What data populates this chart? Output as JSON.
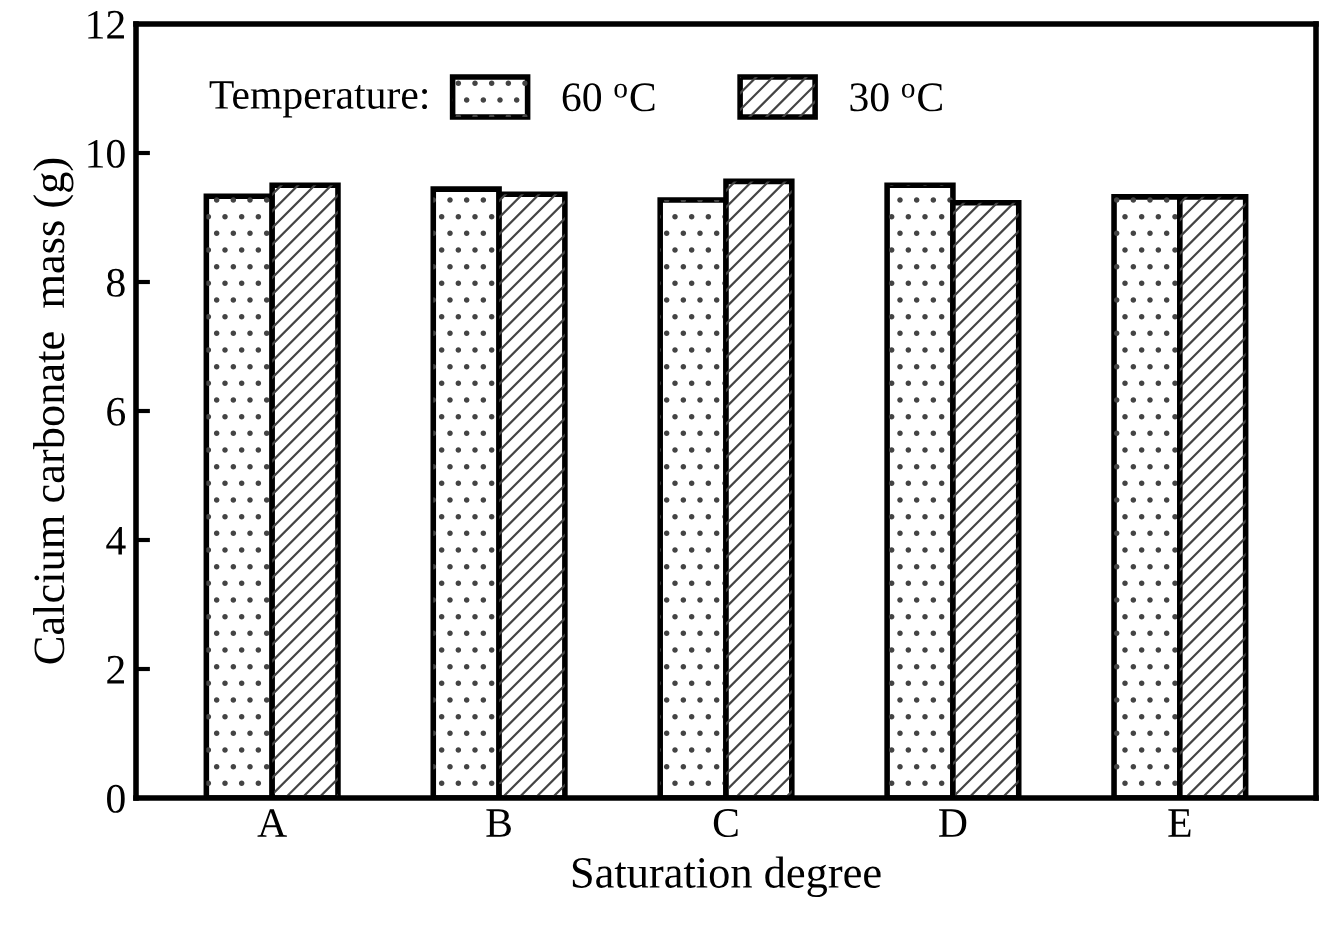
{
  "chart_data": {
    "type": "bar",
    "xlabel": "Saturation degree",
    "ylabel": "Calcium carbonate  mass (g)",
    "legend_title": "Temperature:",
    "categories": [
      "A",
      "B",
      "C",
      "D",
      "E"
    ],
    "series": [
      {
        "name": "60 $^{o}$C",
        "color": "#ffffff",
        "values": [
          9.33,
          9.44,
          9.27,
          9.5,
          9.32
        ]
      },
      {
        "name": "30 $^{o}$C",
        "color": "#ffffff",
        "values": [
          9.5,
          9.36,
          9.56,
          9.23,
          9.32
        ]
      }
    ],
    "ylim": [
      0,
      12
    ],
    "yticks": [
      0,
      2,
      4,
      6,
      8,
      10,
      12
    ],
    "grid": false,
    "legend": "top left"
  }
}
